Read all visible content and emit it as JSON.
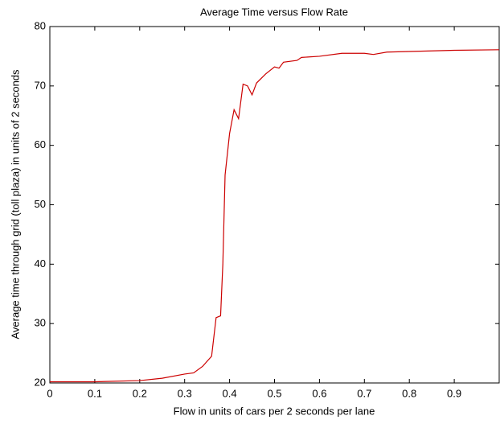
{
  "chart_data": {
    "type": "line",
    "title": "Average Time versus Flow Rate",
    "x_label": "Flow in units of cars per 2 seconds per lane",
    "y_label": "Average time through grid (toll plaza) in units of 2 seconds",
    "x": [
      0,
      0.1,
      0.2,
      0.25,
      0.3,
      0.32,
      0.34,
      0.36,
      0.37,
      0.38,
      0.385,
      0.39,
      0.4,
      0.41,
      0.42,
      0.43,
      0.44,
      0.45,
      0.46,
      0.48,
      0.5,
      0.51,
      0.52,
      0.55,
      0.56,
      0.6,
      0.65,
      0.7,
      0.72,
      0.75,
      0.8,
      0.9,
      1.0
    ],
    "series": [
      {
        "color": "#cc0000",
        "values": [
          20.2,
          20.2,
          20.4,
          20.8,
          21.5,
          21.7,
          22.8,
          24.5,
          31,
          31.3,
          40,
          55,
          62,
          66,
          64.5,
          70.3,
          70,
          68.5,
          70.5,
          72,
          73.2,
          73,
          74,
          74.3,
          74.8,
          75,
          75.5,
          75.5,
          75.3,
          75.7,
          75.8,
          76,
          76.1
        ]
      }
    ],
    "xlim": [
      0,
      1
    ],
    "ylim": [
      20,
      80
    ],
    "xticks": [
      0,
      0.1,
      0.2,
      0.3,
      0.4,
      0.5,
      0.6,
      0.7,
      0.8,
      0.9
    ],
    "yticks": [
      20,
      30,
      40,
      50,
      60,
      70,
      80
    ]
  }
}
